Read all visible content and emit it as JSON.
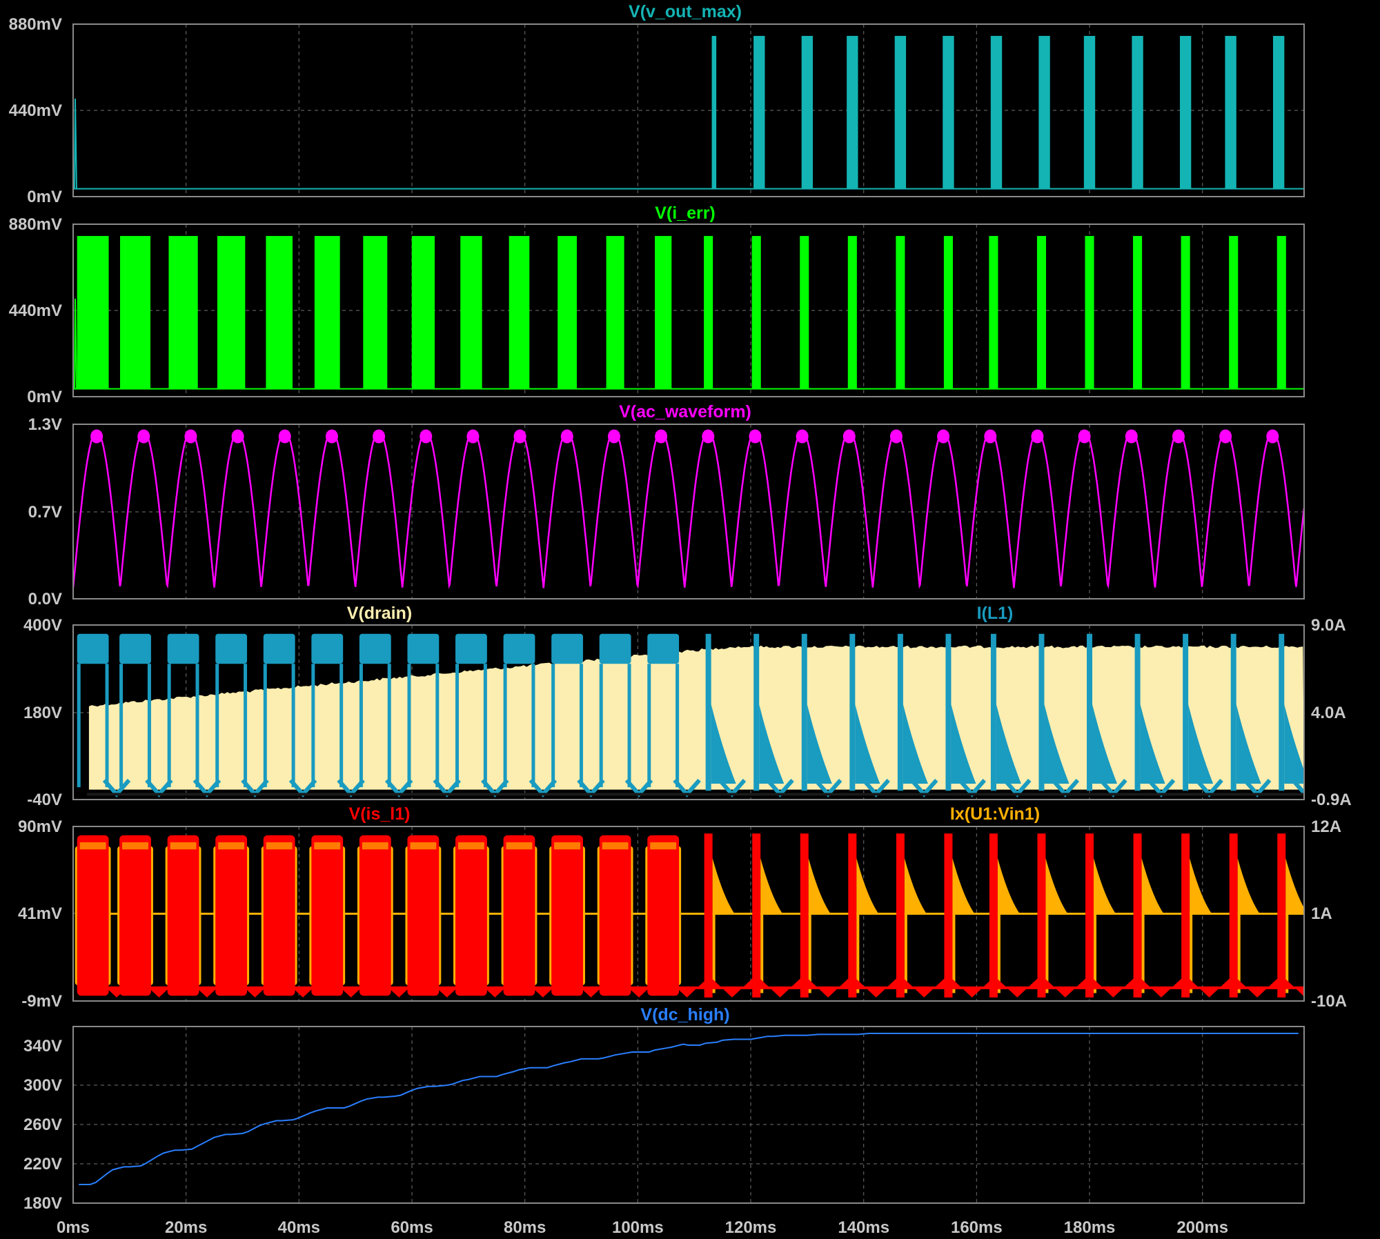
{
  "app": "LTspice waveform viewer",
  "time_axis": {
    "ticks": [
      "0ms",
      "20ms",
      "40ms",
      "60ms",
      "80ms",
      "100ms",
      "120ms",
      "140ms",
      "160ms",
      "180ms",
      "200ms"
    ]
  },
  "chart_data": [
    {
      "type": "line",
      "id": "p1",
      "series": [
        {
          "name": "V(v_out_max)",
          "color": "#14b4b4"
        }
      ],
      "yticks_left": [
        "880mV",
        "440mV",
        "0mV"
      ],
      "ylim_left": [
        0,
        0.88
      ],
      "description_free": true,
      "events": {
        "flat_level": 0.04,
        "bursts_start_ms": 113,
        "burst_peak": 0.82,
        "burst_centers_ms": [
          113.5,
          121.5,
          130,
          138,
          146.5,
          155,
          163.5,
          172,
          180,
          188.5,
          197,
          205,
          213.5
        ]
      }
    },
    {
      "type": "line",
      "id": "p2",
      "series": [
        {
          "name": "V(i_err)",
          "color": "#00ff00"
        }
      ],
      "yticks_left": [
        "880mV",
        "440mV",
        "0mV"
      ],
      "ylim_left": [
        0,
        0.88
      ],
      "events": {
        "flat_level": 0.04,
        "burst_peak": 0.82,
        "burst_centers_ms": [
          3.5,
          11,
          19.5,
          28,
          36.5,
          45,
          53.5,
          62,
          70.5,
          79,
          87.5,
          96,
          104.5,
          112.5,
          121,
          129.5,
          138,
          146.5,
          155,
          163,
          171.5,
          180,
          188.5,
          197,
          205.5,
          214
        ]
      }
    },
    {
      "type": "line",
      "id": "p3",
      "series": [
        {
          "name": "V(ac_waveform)",
          "color": "#ff00ff"
        }
      ],
      "yticks_left": [
        "1.3V",
        "0.7V",
        "0.0V"
      ],
      "ylim_left": [
        0,
        1.3
      ],
      "events": {
        "shape": "full-wave rectified sine",
        "peak": 1.25,
        "period_ms": 8.33,
        "trough": 0.08
      }
    },
    {
      "type": "area",
      "id": "p4",
      "series": [
        {
          "name": "V(drain)",
          "color": "#fceeb0",
          "axis": "left",
          "envelope_start": 195,
          "envelope_end": 345
        },
        {
          "name": "I(L1)",
          "color": "#1a9bc0",
          "axis": "right"
        }
      ],
      "yticks_left": [
        "400V",
        "180V",
        "-40V"
      ],
      "ylim_left": [
        -40,
        400
      ],
      "yticks_right": [
        "9.0A",
        "4.0A",
        "-0.9A"
      ],
      "ylim_right": [
        -0.9,
        9.0
      ]
    },
    {
      "type": "area",
      "id": "p5",
      "series": [
        {
          "name": "V(is_l1)",
          "color": "#ff0000",
          "axis": "left"
        },
        {
          "name": "Ix(U1:Vin1)",
          "color": "#ffb000",
          "axis": "right"
        }
      ],
      "yticks_left": [
        "90mV",
        "41mV",
        "-9mV"
      ],
      "ylim_left": [
        -9,
        90
      ],
      "yticks_right": [
        "12A",
        "1A",
        "-10A"
      ],
      "ylim_right": [
        -10,
        12
      ]
    },
    {
      "type": "line",
      "id": "p6",
      "series": [
        {
          "name": "V(dc_high)",
          "color": "#2a7fff",
          "x": [
            1,
            3,
            4,
            6,
            7,
            9,
            10,
            12,
            13,
            15,
            16,
            18,
            19,
            21,
            22,
            24,
            25,
            27,
            28,
            30,
            31,
            33,
            34,
            36,
            37,
            39,
            40,
            42,
            43,
            45,
            46,
            48,
            49,
            51,
            52,
            54,
            55,
            57,
            58,
            60,
            61,
            63,
            64,
            66,
            67,
            69,
            70,
            72,
            73,
            75,
            76,
            78,
            79,
            81,
            82,
            84,
            85,
            87,
            88,
            90,
            91,
            93,
            94,
            96,
            97,
            99,
            100,
            102,
            103,
            105,
            106,
            108,
            109,
            111,
            112,
            114,
            115,
            117,
            118,
            120,
            121,
            123,
            124,
            126,
            127,
            129,
            130,
            132,
            133,
            135,
            136,
            138,
            139,
            141,
            142,
            144,
            145,
            147,
            148,
            150,
            151,
            153,
            154,
            156,
            157,
            159,
            160,
            162,
            163,
            165,
            166,
            168,
            169,
            171,
            172,
            174,
            175,
            177,
            178,
            180,
            181,
            183,
            184,
            186,
            187,
            189,
            190,
            192,
            193,
            195,
            196,
            198,
            199,
            201,
            202,
            204,
            205,
            207,
            208,
            210,
            211,
            213,
            214,
            216,
            217
          ],
          "values": [
            199,
            199,
            201,
            210,
            214,
            217,
            217,
            218,
            221,
            228,
            231,
            234,
            234,
            235,
            238,
            244,
            247,
            250,
            250,
            251,
            253,
            259,
            261,
            264,
            264,
            265,
            267,
            272,
            274,
            277,
            277,
            277,
            279,
            284,
            286,
            288,
            288,
            289,
            290,
            295,
            297,
            299,
            299,
            300,
            301,
            305,
            306,
            309,
            309,
            309,
            311,
            314,
            316,
            318,
            318,
            318,
            320,
            323,
            324,
            327,
            327,
            327,
            328,
            331,
            332,
            334,
            334,
            334,
            336,
            338,
            339,
            342,
            341,
            341,
            343,
            344,
            346,
            347,
            347,
            347,
            348,
            350,
            350,
            351,
            351,
            351,
            351,
            352,
            352,
            352,
            352,
            352,
            352,
            353,
            353,
            353,
            353,
            353,
            353,
            353,
            353,
            353,
            353,
            353,
            353,
            353,
            353,
            353,
            353,
            353,
            353,
            353,
            353,
            353,
            353,
            353,
            353,
            353,
            353,
            353,
            353,
            353,
            353,
            353,
            353,
            353,
            353,
            353,
            353,
            353,
            353,
            353,
            353,
            353,
            353,
            353,
            353,
            353,
            353,
            353,
            353,
            353,
            353,
            353,
            353
          ]
        }
      ],
      "yticks_left": [
        "340V",
        "300V",
        "260V",
        "220V",
        "180V"
      ],
      "ylim_left": [
        180,
        360
      ]
    }
  ]
}
